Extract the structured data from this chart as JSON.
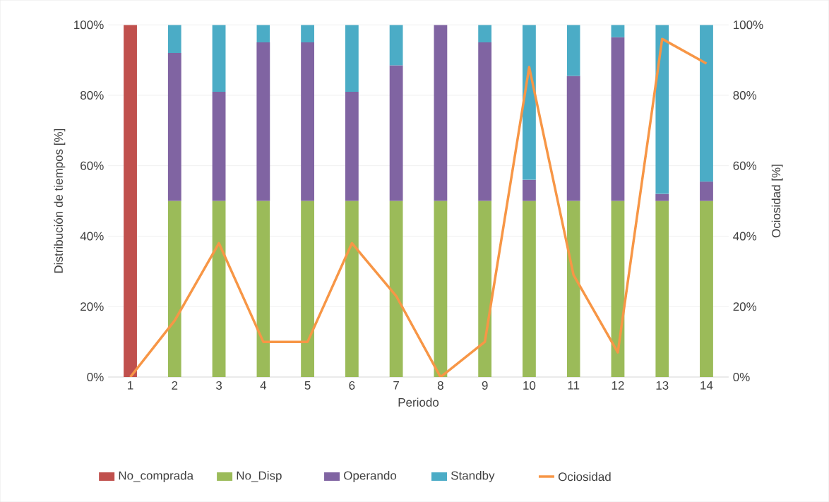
{
  "chart_data": {
    "type": "bar",
    "stacked": true,
    "xlabel": "Periodo",
    "ylabel": "Distribución de tiempos [%]",
    "y2label": "Ociosidad [%]",
    "categories": [
      "1",
      "2",
      "3",
      "4",
      "5",
      "6",
      "7",
      "8",
      "9",
      "10",
      "11",
      "12",
      "13",
      "14"
    ],
    "series": [
      {
        "name": "No_comprada",
        "color": "#c0504d",
        "values": [
          100,
          null,
          null,
          null,
          null,
          null,
          null,
          null,
          null,
          null,
          null,
          null,
          null,
          null
        ]
      },
      {
        "name": "No_Disp",
        "color": "#9bbb59",
        "values": [
          null,
          50,
          50,
          50,
          50,
          50,
          50,
          50,
          50,
          50,
          50,
          50,
          50,
          50
        ]
      },
      {
        "name": "Operando",
        "color": "#8064a2",
        "values": [
          null,
          42,
          31,
          45,
          45,
          31,
          38.5,
          50,
          45,
          6,
          35.5,
          46.5,
          2,
          5.5
        ]
      },
      {
        "name": "Standby",
        "color": "#4bacc6",
        "values": [
          null,
          8,
          19,
          5,
          5,
          19,
          11.5,
          null,
          5,
          44,
          14.5,
          3.5,
          48,
          44.5
        ]
      },
      {
        "name": "Ociosidad",
        "type": "line",
        "axis": "y2",
        "color": "#f79646",
        "values": [
          0,
          16,
          38,
          10,
          10,
          38,
          23,
          0,
          10,
          88,
          29,
          7,
          96,
          89
        ]
      }
    ],
    "ylim": [
      0,
      100
    ],
    "yticks": [
      {
        "value": 0,
        "label": "0%"
      },
      {
        "value": 20,
        "label": "20%"
      },
      {
        "value": 40,
        "label": "40%"
      },
      {
        "value": 60,
        "label": "60%"
      },
      {
        "value": 80,
        "label": "80%"
      },
      {
        "value": 100,
        "label": "100%"
      }
    ],
    "y2lim": [
      0,
      100
    ],
    "y2ticks": [
      {
        "value": 0,
        "label": "0%"
      },
      {
        "value": 20,
        "label": "20%"
      },
      {
        "value": 40,
        "label": "40%"
      },
      {
        "value": 60,
        "label": "60%"
      },
      {
        "value": 80,
        "label": "80%"
      },
      {
        "value": 100,
        "label": "100%"
      }
    ],
    "grid": "y",
    "legend": "bottom",
    "marker": "none",
    "line_style": "solid"
  }
}
